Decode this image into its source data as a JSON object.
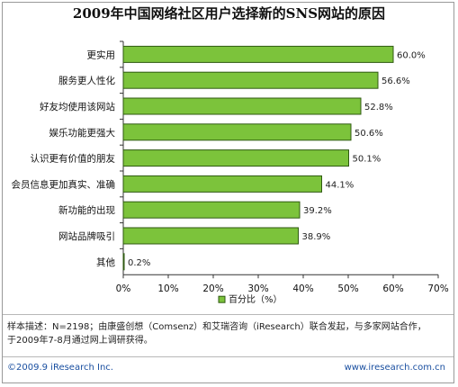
{
  "title": "2009年中国网络社区用户选择新的SNS网站的原因",
  "note_lines": [
    "样本描述：N=2198；由康盛创想（Comsenz）和艾瑞咨询（iResearch）联合发起，与多家网站合作，",
    "于2009年7-8月通过网上调研获得。"
  ],
  "footer": {
    "left": "©2009.9 iResearch Inc.",
    "right": "www.iresearch.com.cn"
  },
  "colors": {
    "bar": "#7cc33b",
    "bar_stroke": "#2f5a12",
    "axis": "#333333",
    "frame": "#9a9a9a"
  },
  "chart_data": {
    "type": "bar",
    "orientation": "horizontal",
    "title": "2009年中国网络社区用户选择新的SNS网站的原因",
    "categories": [
      "更实用",
      "服务更人性化",
      "好友均使用该网站",
      "娱乐功能更强大",
      "认识更有价值的朋友",
      "会员信息更加真实、准确",
      "新功能的出现",
      "网站品牌吸引",
      "其他"
    ],
    "series": [
      {
        "name": "百分比（%）",
        "values": [
          60.0,
          56.6,
          52.8,
          50.6,
          50.1,
          44.1,
          39.2,
          38.9,
          0.2
        ]
      }
    ],
    "value_labels": [
      "60.0%",
      "56.6%",
      "52.8%",
      "50.6%",
      "50.1%",
      "44.1%",
      "39.2%",
      "38.9%",
      "0.2%"
    ],
    "xlim": [
      0,
      70
    ],
    "xticks": [
      0,
      10,
      20,
      30,
      40,
      50,
      60,
      70
    ],
    "xtick_labels": [
      "0%",
      "10%",
      "20%",
      "30%",
      "40%",
      "50%",
      "60%",
      "70%"
    ],
    "grid": false,
    "legend": {
      "position": "bottom",
      "label": "百分比（%）"
    }
  }
}
